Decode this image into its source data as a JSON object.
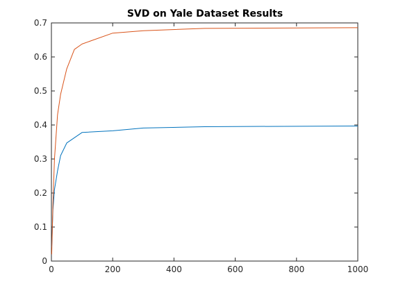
{
  "chart_data": {
    "type": "line",
    "title": "SVD on Yale Dataset Results",
    "xlabel": "",
    "ylabel": "",
    "xlim": [
      0,
      1000
    ],
    "ylim": [
      0,
      0.7
    ],
    "grid": false,
    "legend": null,
    "xticks": [
      0,
      200,
      400,
      600,
      800,
      1000
    ],
    "xtick_labels": [
      "0",
      "200",
      "400",
      "600",
      "800",
      "1000"
    ],
    "yticks": [
      0,
      0.1,
      0.2,
      0.3,
      0.4,
      0.5,
      0.6,
      0.7
    ],
    "ytick_labels": [
      "0",
      "0.1",
      "0.2",
      "0.3",
      "0.4",
      "0.5",
      "0.6",
      "0.7"
    ],
    "series": [
      {
        "color": "#0072BD",
        "x": [
          1,
          5,
          10,
          20,
          30,
          50,
          100,
          200,
          300,
          500,
          1000
        ],
        "y": [
          0.04,
          0.15,
          0.21,
          0.265,
          0.31,
          0.347,
          0.378,
          0.383,
          0.391,
          0.395,
          0.397
        ]
      },
      {
        "color": "#D95319",
        "x": [
          1,
          5,
          10,
          20,
          30,
          50,
          75,
          100,
          200,
          300,
          500,
          1000
        ],
        "y": [
          0.02,
          0.17,
          0.3,
          0.43,
          0.49,
          0.565,
          0.622,
          0.638,
          0.67,
          0.677,
          0.684,
          0.686
        ]
      }
    ]
  }
}
